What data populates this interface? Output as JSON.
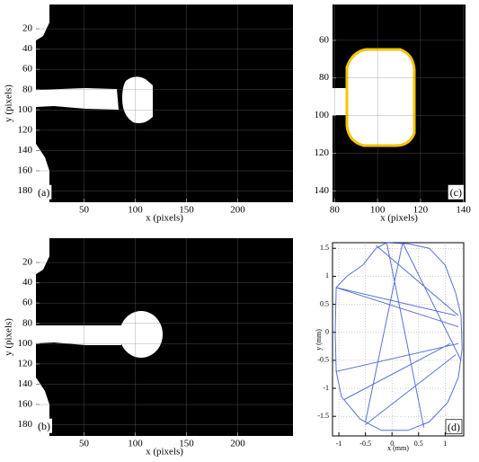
{
  "chart_data": [
    {
      "type": "image",
      "panel_label": "(a)",
      "xlabel": "x (pixels)",
      "ylabel": "y (pixels)",
      "xlim": [
        3,
        254
      ],
      "ylim": [
        -4,
        191
      ],
      "xticks": [
        50,
        100,
        150,
        200
      ],
      "yticks": [
        20,
        40,
        60,
        80,
        100,
        120,
        140,
        160,
        180
      ],
      "grid": true
    },
    {
      "type": "image",
      "panel_label": "(b)",
      "xlabel": "x (pixels)",
      "ylabel": "y (pixels)",
      "xlim": [
        3,
        254
      ],
      "ylim": [
        -4,
        191
      ],
      "xticks": [
        50,
        100,
        150,
        200
      ],
      "yticks": [
        20,
        40,
        60,
        80,
        100,
        120,
        140,
        160,
        180
      ],
      "grid": true
    },
    {
      "type": "image",
      "panel_label": "(c)",
      "xlabel": "x (pixels)",
      "xlim": [
        79,
        141
      ],
      "ylim": [
        41,
        146
      ],
      "xticks": [
        80,
        100,
        120,
        140
      ],
      "yticks": [
        60,
        80,
        100,
        120,
        140
      ],
      "grid": true
    },
    {
      "type": "line",
      "panel_label": "(d)",
      "xlabel": "x (mm)",
      "ylabel": "y (mm)",
      "xlim": [
        -1.12,
        1.35
      ],
      "ylim": [
        -1.85,
        1.6
      ],
      "xticks": [
        -1,
        -0.5,
        0,
        0.5,
        1
      ],
      "yticks": [
        -1.5,
        -1,
        -0.5,
        0,
        0.5,
        1,
        1.5
      ],
      "grid": true,
      "series": [
        {
          "color": "#3a5bd0",
          "x": [
            -0.55,
            -0.3,
            -0.1,
            0.3,
            0.7,
            1.0,
            1.2,
            1.3,
            1.32,
            1.25,
            1.05,
            0.7,
            0.3,
            -0.2,
            -0.6,
            -0.95,
            -1.05,
            -1.07,
            -1.05,
            -0.85,
            -0.55
          ],
          "y": [
            1.2,
            1.5,
            1.6,
            1.58,
            1.5,
            1.2,
            0.7,
            0.3,
            -0.3,
            -0.8,
            -1.25,
            -1.6,
            -1.75,
            -1.75,
            -1.55,
            -1.15,
            -0.7,
            0,
            0.8,
            1.0,
            1.2
          ]
        },
        {
          "color": "#3a5bd0",
          "x": [
            -1.05,
            1.2,
            null,
            -1.05,
            1.25,
            null,
            -0.3,
            1.25,
            null,
            -0.1,
            0.6,
            null,
            0.2,
            1.3,
            null,
            -1.05,
            1.25,
            null,
            -0.9,
            1.1,
            null,
            -0.5,
            1.2,
            null,
            0.2,
            -0.5
          ],
          "y": [
            0.8,
            0.3,
            null,
            0.8,
            0.1,
            null,
            1.55,
            0.3,
            null,
            1.6,
            -1.7,
            null,
            1.6,
            -0.5,
            null,
            -0.7,
            -0.2,
            null,
            -1.2,
            -0.2,
            null,
            -1.65,
            -0.4,
            null,
            1.6,
            -1.6
          ]
        }
      ]
    }
  ]
}
